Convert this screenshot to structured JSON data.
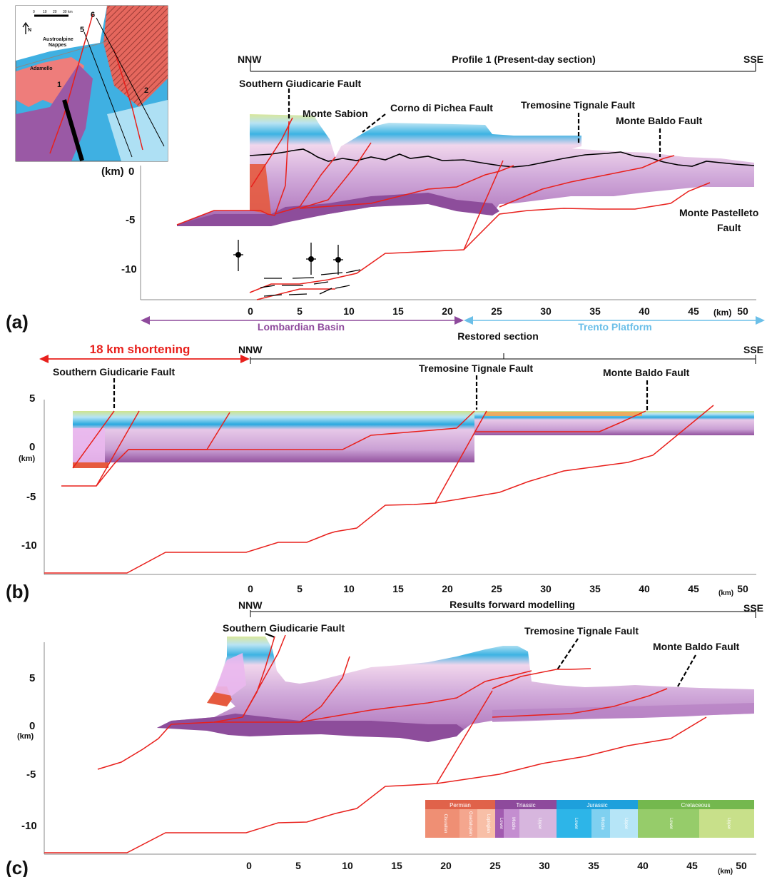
{
  "map": {
    "north": "N",
    "scale_ticks": [
      "0",
      "10",
      "20",
      "30 km"
    ],
    "labels": [
      "Austroalpine",
      "Nappes",
      "Adamello"
    ],
    "profile_numbers": [
      "1",
      "2",
      "5",
      "6"
    ]
  },
  "panels": [
    {
      "letter": "(a)",
      "title": "Profile 1 (Present-day section)",
      "left_end": "NNW",
      "right_end": "SSE",
      "y_unit": "(km)",
      "y_ticks": [
        "0",
        "-5",
        "-10"
      ],
      "x_ticks": [
        "0",
        "5",
        "10",
        "15",
        "20",
        "25",
        "30",
        "35",
        "40",
        "45",
        "50"
      ],
      "x_unit": "(km)",
      "faults": [
        "Southern Giudicarie Fault",
        "Monte Sabion",
        "Corno di Pichea Fault",
        "Tremosine Tignale Fault",
        "Monte Baldo Fault",
        "Monte Pastelleto",
        "Fault"
      ],
      "domains": {
        "left": "Lombardian Basin",
        "right": "Trento Platform"
      }
    },
    {
      "letter": "(b)",
      "title": "Restored section",
      "left_end": "NNW",
      "right_end": "SSE",
      "shortening": "18 km shortening",
      "y_unit": "(km)",
      "y_ticks": [
        "5",
        "0",
        "-5",
        "-10"
      ],
      "x_ticks": [
        "0",
        "5",
        "10",
        "15",
        "20",
        "25",
        "30",
        "35",
        "40",
        "45",
        "50"
      ],
      "x_unit": "(km)",
      "faults": [
        "Southern Giudicarie Fault",
        "Tremosine Tignale Fault",
        "Monte Baldo Fault"
      ]
    },
    {
      "letter": "(c)",
      "title": "Results forward modelling",
      "left_end": "NNW",
      "right_end": "SSE",
      "y_unit": "(km)",
      "y_ticks": [
        "5",
        "0",
        "-5",
        "-10"
      ],
      "x_ticks": [
        "0",
        "5",
        "10",
        "15",
        "20",
        "25",
        "30",
        "35",
        "40",
        "45",
        "50"
      ],
      "x_unit": "(km)",
      "faults": [
        "Southern Giudicarie Fault",
        "Tremosine Tignale Fault",
        "Monte Baldo Fault"
      ]
    }
  ],
  "legend": {
    "periods": [
      {
        "name": "Permian",
        "color": "#e0624a",
        "epochs": [
          {
            "name": "Cisuralian",
            "color": "#ef8f74"
          },
          {
            "name": "Guadalupian",
            "color": "#f4a68e"
          },
          {
            "name": "Lopingian",
            "color": "#f8bfa7"
          }
        ]
      },
      {
        "name": "Triassic",
        "color": "#8e4a9c",
        "epochs": [
          {
            "name": "Lower",
            "color": "#a25ab0"
          },
          {
            "name": "Middle",
            "color": "#c48ed0"
          },
          {
            "name": "Upper",
            "color": "#d7b6de"
          }
        ]
      },
      {
        "name": "Jurassic",
        "color": "#1ea0dc",
        "epochs": [
          {
            "name": "Lower",
            "color": "#2db5e8"
          },
          {
            "name": "Middle",
            "color": "#7fd0f0"
          },
          {
            "name": "Upper",
            "color": "#b6e5f7"
          }
        ]
      },
      {
        "name": "Cretaceous",
        "color": "#74b84e",
        "epochs": [
          {
            "name": "Lower",
            "color": "#96cc6a"
          },
          {
            "name": "Upper",
            "color": "#c8e08a"
          }
        ]
      }
    ]
  }
}
